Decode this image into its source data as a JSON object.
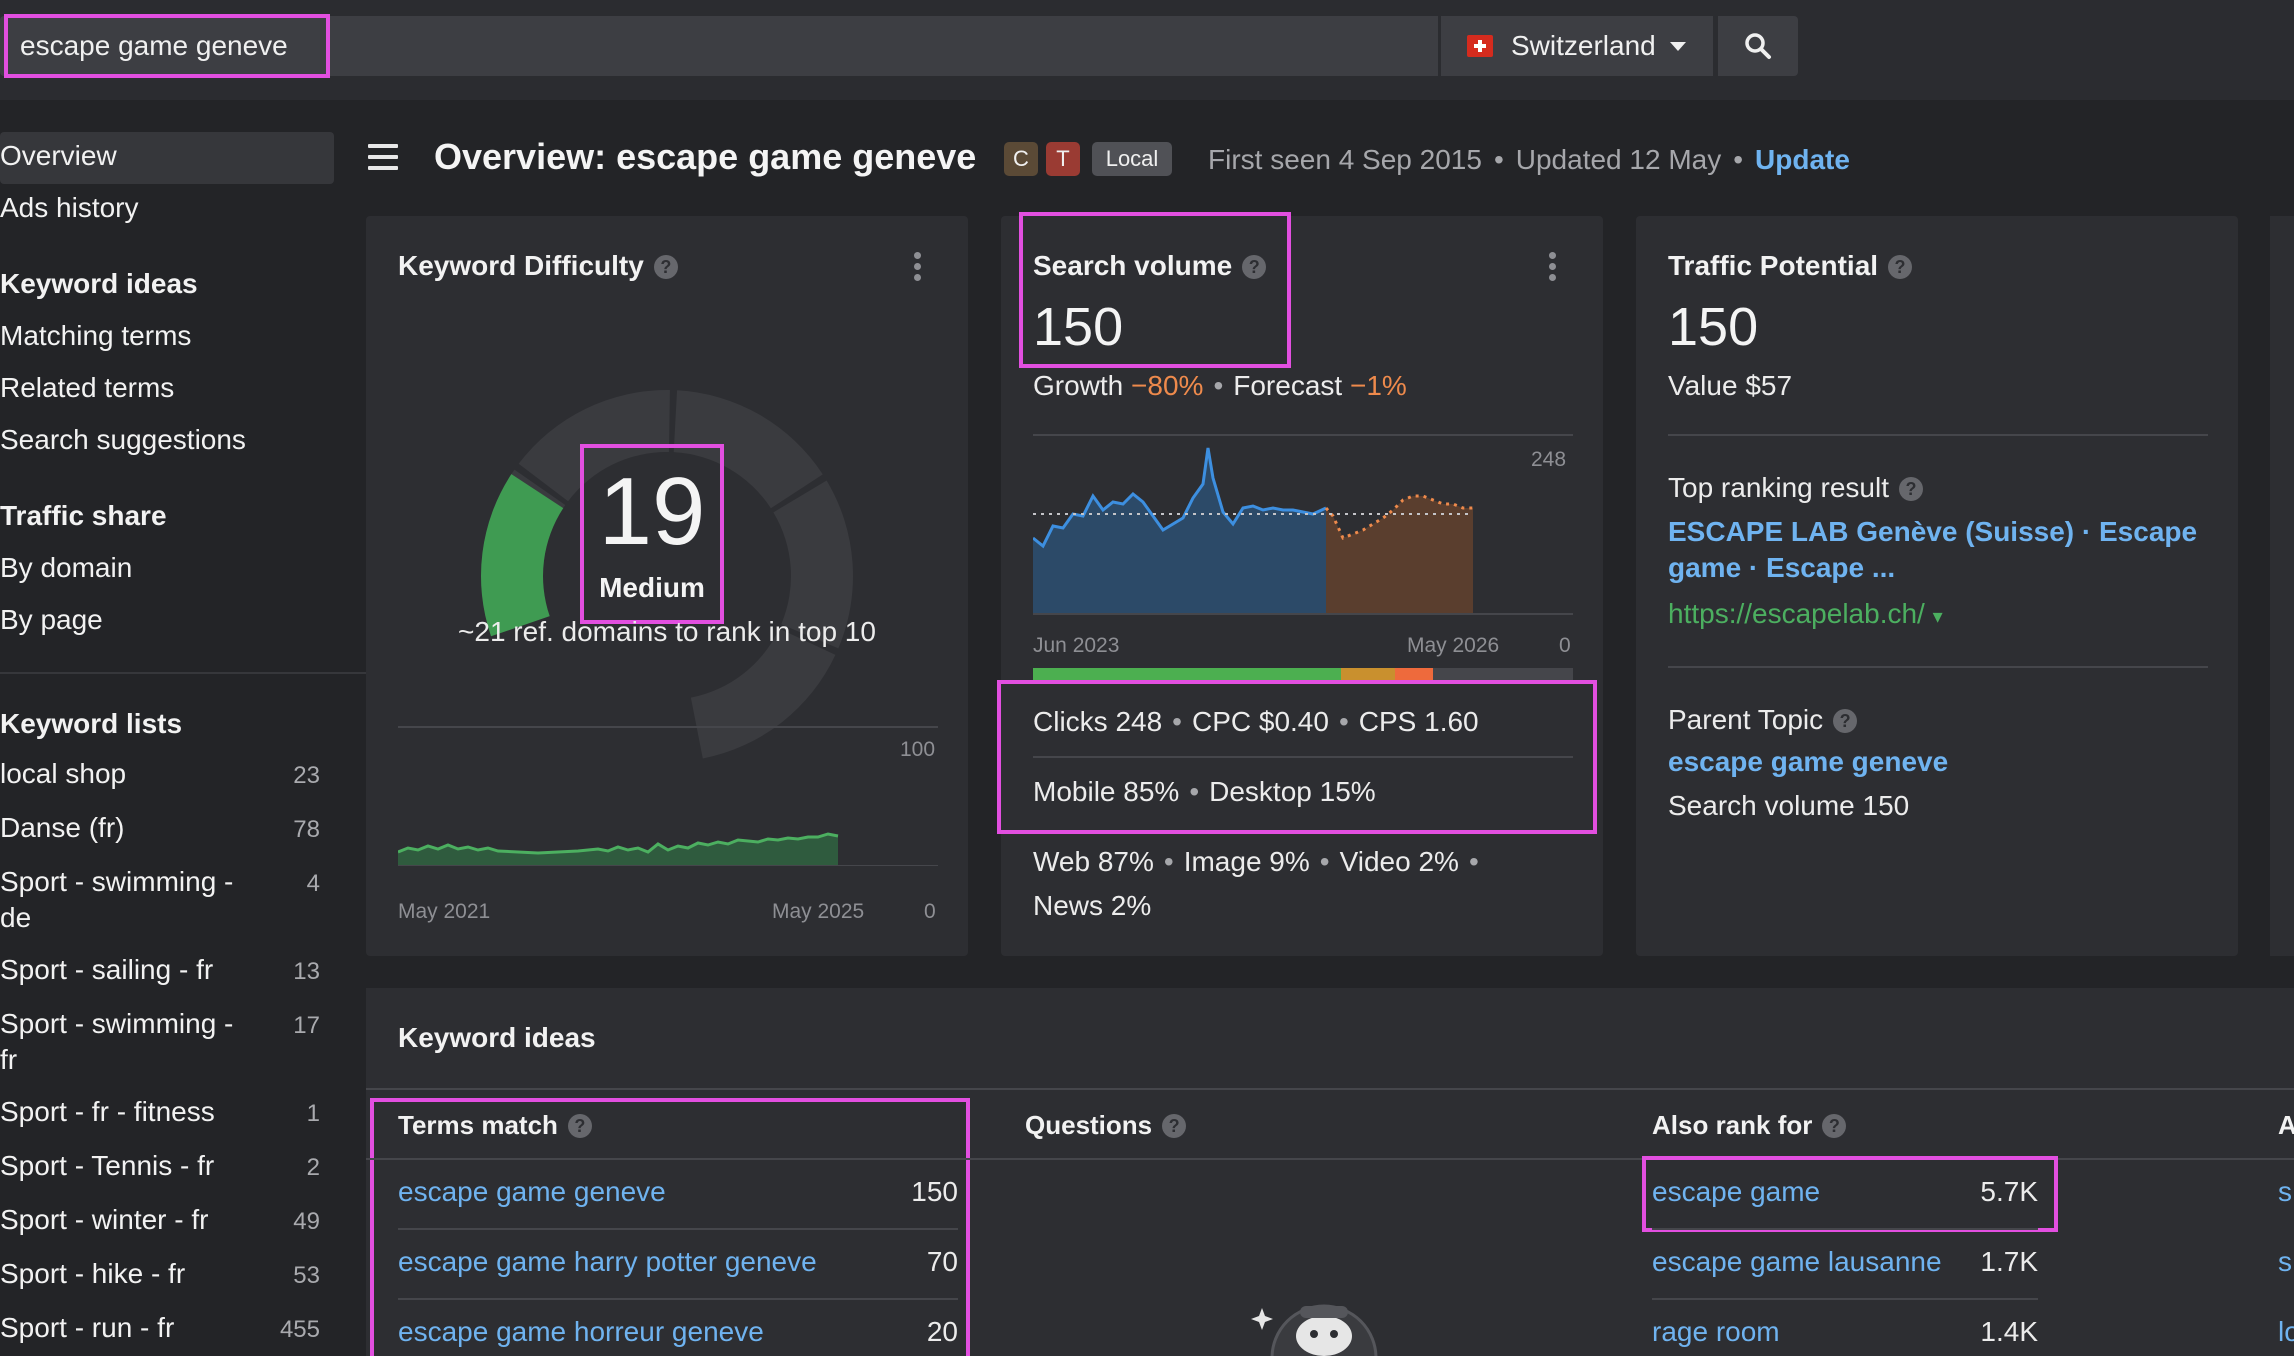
{
  "search": {
    "query": "escape game geneve",
    "country": "Switzerland",
    "country_flag_icon": "swiss-flag-icon"
  },
  "sidebar": {
    "overview": "Overview",
    "ads_history": "Ads history",
    "keyword_ideas_heading": "Keyword ideas",
    "keyword_ideas_items": [
      "Matching terms",
      "Related terms",
      "Search suggestions"
    ],
    "traffic_share_heading": "Traffic share",
    "traffic_share_items": [
      "By domain",
      "By page"
    ],
    "keyword_lists_heading": "Keyword lists",
    "keyword_lists": [
      {
        "name": "local shop",
        "count": "23"
      },
      {
        "name": "Danse (fr)",
        "count": "78"
      },
      {
        "name": "Sport - swimming - de",
        "count": "4"
      },
      {
        "name": "Sport - sailing - fr",
        "count": "13"
      },
      {
        "name": "Sport - swimming - fr",
        "count": "17"
      },
      {
        "name": "Sport - fr - fitness",
        "count": "1"
      },
      {
        "name": "Sport - Tennis - fr",
        "count": "2"
      },
      {
        "name": "Sport - winter - fr",
        "count": "49"
      },
      {
        "name": "Sport - hike - fr",
        "count": "53"
      },
      {
        "name": "Sport - run - fr",
        "count": "455"
      }
    ]
  },
  "header": {
    "title": "Overview: escape game geneve",
    "tags": [
      "C",
      "T",
      "Local"
    ],
    "first_seen": "First seen 4 Sep 2015",
    "updated": "Updated 12 May",
    "update_link": "Update"
  },
  "kd_card": {
    "title": "Keyword Difficulty",
    "value": "19",
    "level": "Medium",
    "value_fraction": 0.19,
    "note": "~21 ref. domains to rank in top 10",
    "axis_max": "100",
    "axis_min": "0",
    "x_start": "May 2021",
    "x_end": "May 2025"
  },
  "sv_card": {
    "title": "Search volume",
    "value": "150",
    "growth_label": "Growth",
    "growth_value": "−80%",
    "forecast_label": "Forecast",
    "forecast_value": "−1%",
    "axis_max": "248",
    "axis_min": "0",
    "x_start": "Jun 2023",
    "x_end": "May 2026",
    "clicks": "Clicks 248",
    "cpc": "CPC $0.40",
    "cps": "CPS 1.60",
    "mobile": "Mobile 85%",
    "desktop": "Desktop 15%",
    "web": "Web 87%",
    "image": "Image 9%",
    "video": "Video 2%",
    "news": "News 2%",
    "click_bar_colors": [
      "#4caf50",
      "#c9902e",
      "#ee6a3c",
      "#45464b"
    ]
  },
  "tp_card": {
    "title": "Traffic Potential",
    "value": "150",
    "value_text": "Value $57",
    "top_result_label": "Top ranking result",
    "top_result_title": "ESCAPE LAB Genève (Suisse) · Escape game · Escape ...",
    "top_result_url": "https://escapelab.ch/",
    "parent_topic_label": "Parent Topic",
    "parent_topic": "escape game geneve",
    "parent_volume": "Search volume 150"
  },
  "keyword_ideas": {
    "title": "Keyword ideas",
    "terms_match": {
      "title": "Terms match",
      "rows": [
        {
          "kw": "escape game geneve",
          "vol": "150"
        },
        {
          "kw": "escape game harry potter geneve",
          "vol": "70"
        },
        {
          "kw": "escape game horreur geneve",
          "vol": "20"
        }
      ]
    },
    "questions": {
      "title": "Questions"
    },
    "also_rank_for": {
      "title": "Also rank for",
      "rows": [
        {
          "kw": "escape game",
          "vol": "5.7K"
        },
        {
          "kw": "escape game lausanne",
          "vol": "1.7K"
        },
        {
          "kw": "rage room",
          "vol": "1.4K"
        }
      ]
    },
    "fourth_col_initial": "A",
    "fourth_col_rows": [
      "s",
      "s",
      "lo"
    ]
  }
}
